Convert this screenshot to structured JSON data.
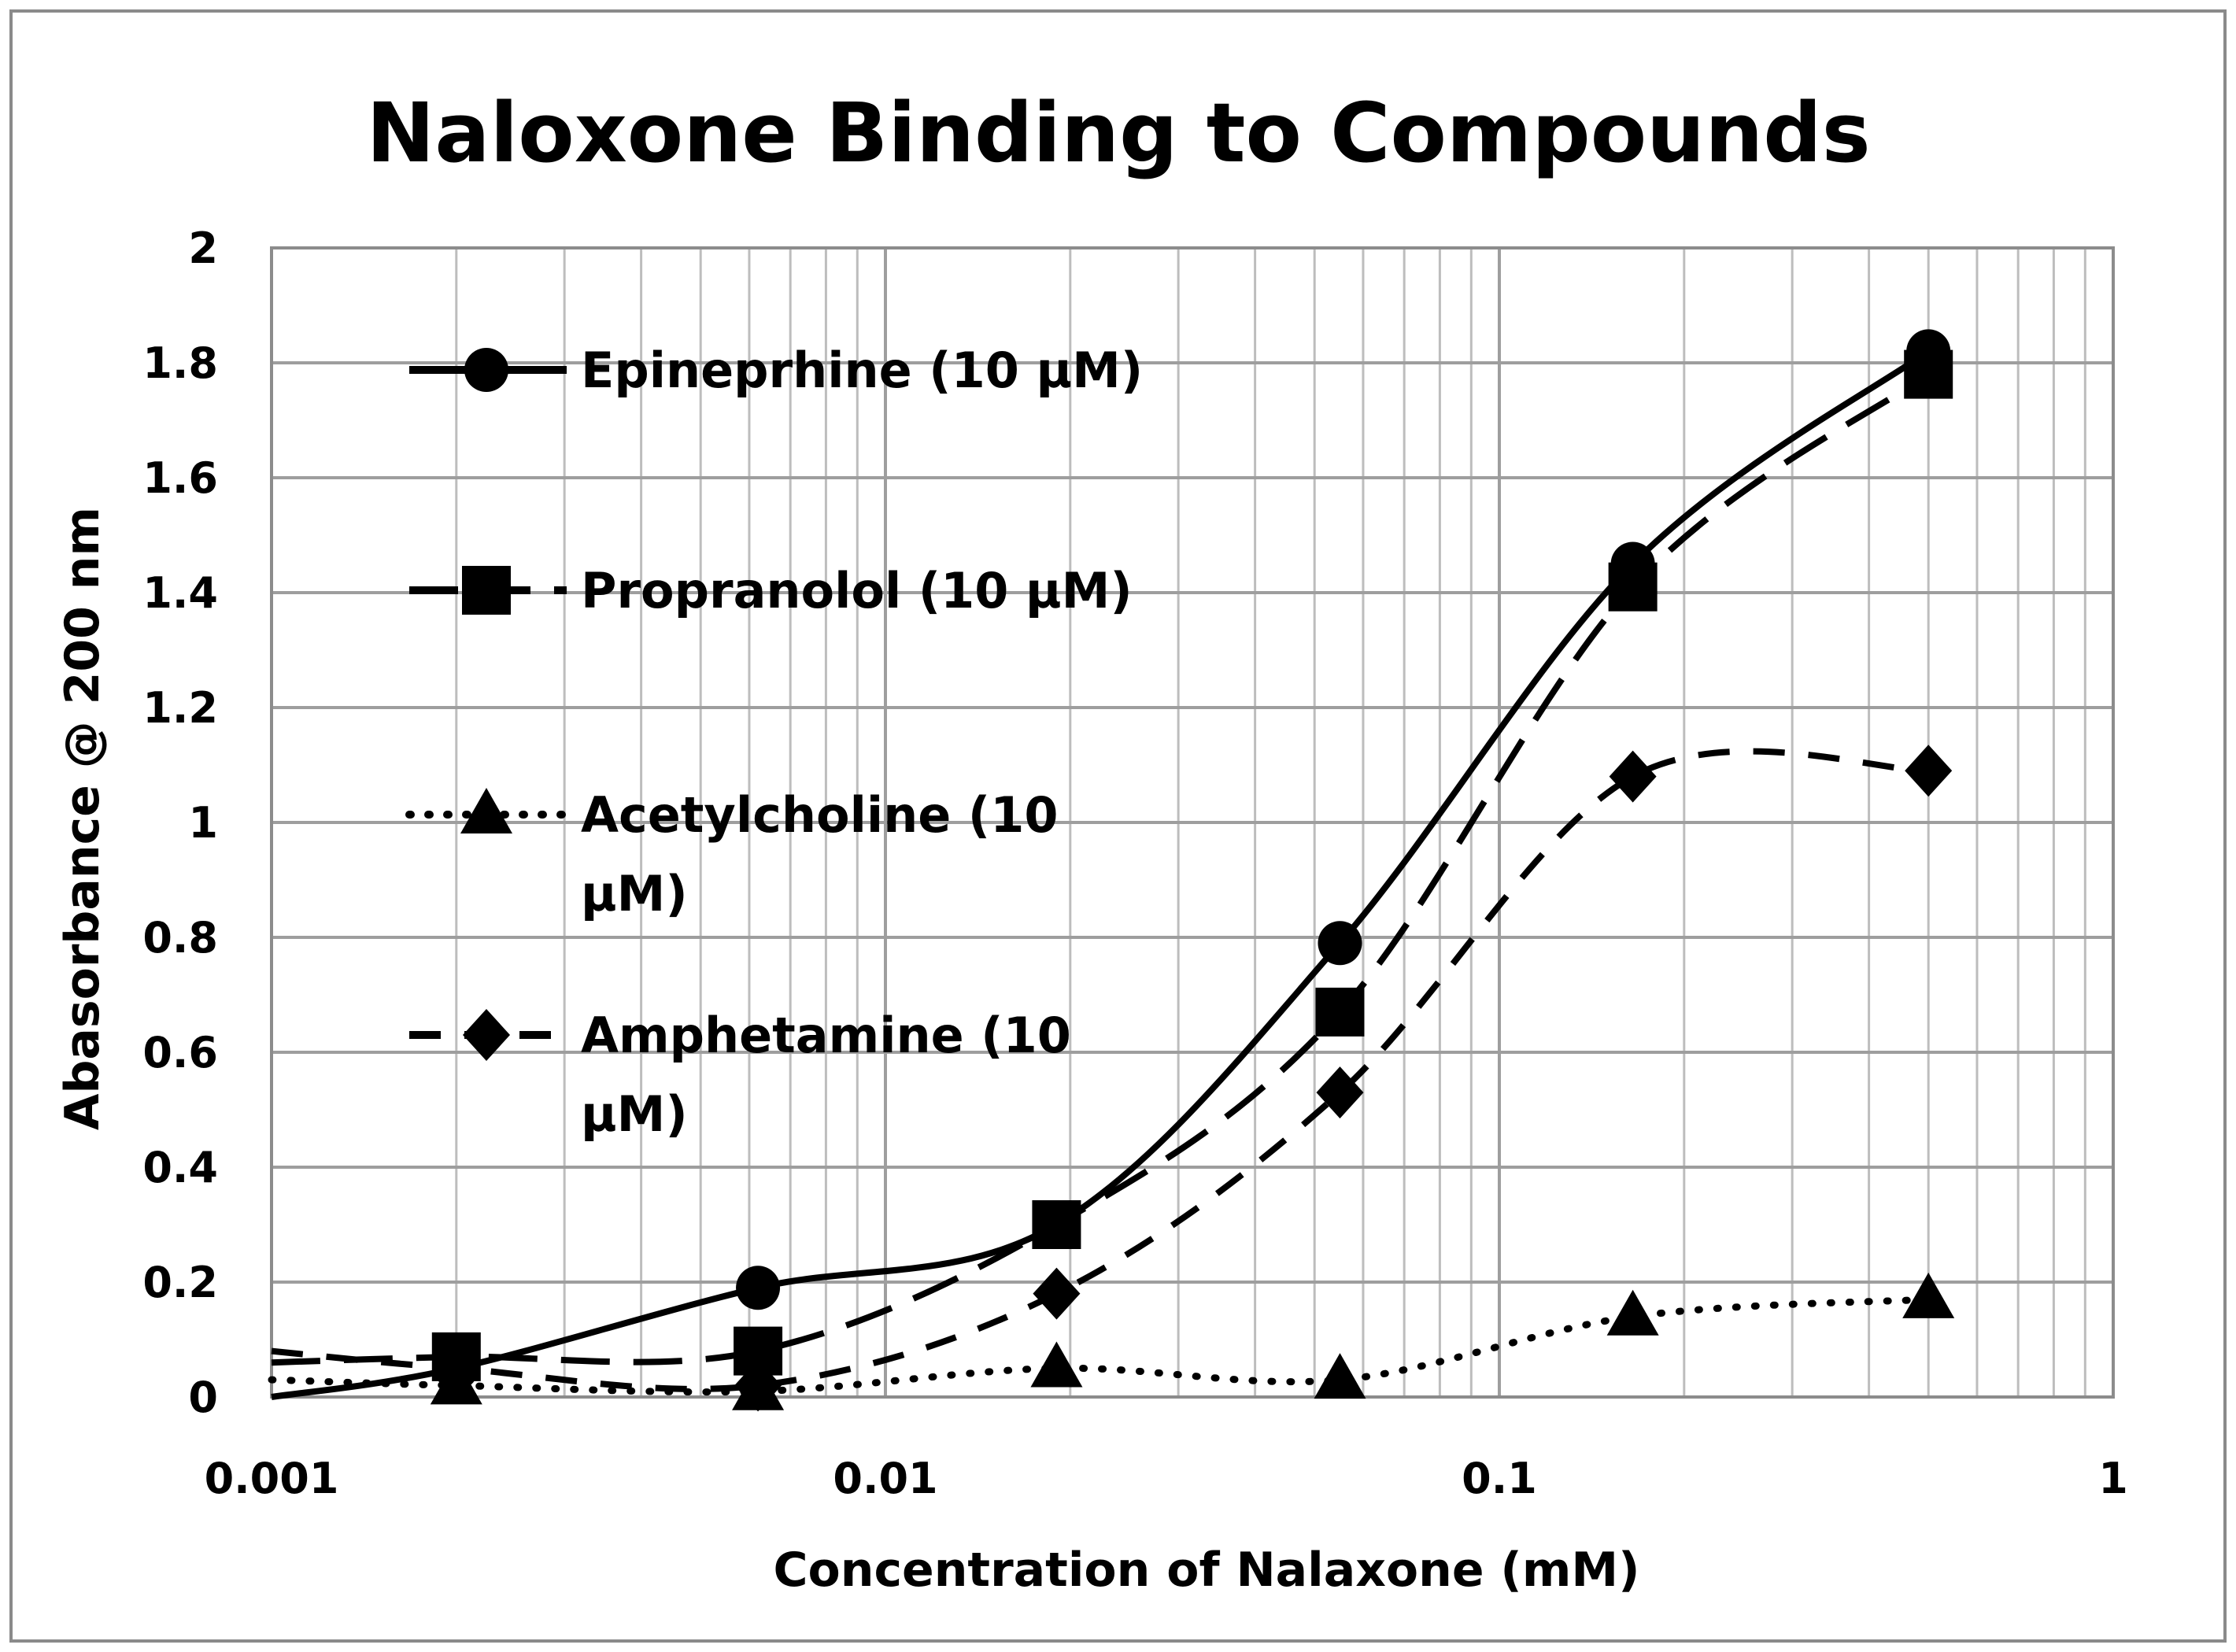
{
  "chart_data": {
    "type": "line",
    "title": "Naloxone Binding to Compounds",
    "xlabel": "Concentration of Nalaxone (mM)",
    "ylabel": "Abasorbance @ 200 nm",
    "x_scale": "log",
    "xlim": [
      0.001,
      1
    ],
    "ylim": [
      0,
      2
    ],
    "x_ticks": [
      0.001,
      0.01,
      0.1,
      1
    ],
    "x_tick_labels": [
      "0.001",
      "0.01",
      "0.1",
      "1"
    ],
    "y_ticks": [
      0,
      0.2,
      0.4,
      0.6,
      0.8,
      1,
      1.2,
      1.4,
      1.6,
      1.8,
      2
    ],
    "y_tick_labels": [
      "0",
      "0.2",
      "0.4",
      "0.6",
      "0.8",
      "1",
      "1.2",
      "1.4",
      "1.6",
      "1.8",
      "2"
    ],
    "grid": true,
    "legend_position": "top-left",
    "series": [
      {
        "name": "Epineprhine (10 µM)",
        "legend_lines": [
          "Epineprhine (10 µM)"
        ],
        "marker": "circle",
        "line_style": "solid",
        "x": [
          0.001,
          0.002,
          0.0062,
          0.019,
          0.055,
          0.165,
          0.5
        ],
        "y": [
          0.0,
          0.05,
          0.19,
          0.3,
          0.79,
          1.45,
          1.82
        ]
      },
      {
        "name": "Propranolol (10 µM)",
        "legend_lines": [
          "Propranolol (10 µM)"
        ],
        "marker": "square",
        "line_style": "long-dash",
        "x": [
          0.001,
          0.002,
          0.0062,
          0.019,
          0.055,
          0.165,
          0.5
        ],
        "y": [
          0.06,
          0.07,
          0.08,
          0.3,
          0.67,
          1.41,
          1.78
        ]
      },
      {
        "name": "Acetylcholine (10 µM)",
        "legend_lines": [
          "Acetylcholine (10",
          "µM)"
        ],
        "marker": "triangle",
        "line_style": "dotted",
        "x": [
          0.001,
          0.002,
          0.0062,
          0.019,
          0.055,
          0.165,
          0.5
        ],
        "y": [
          0.03,
          0.02,
          0.01,
          0.05,
          0.03,
          0.14,
          0.17
        ]
      },
      {
        "name": "Amphetamine (10 µM)",
        "legend_lines": [
          "Amphetamine (10",
          "µM)"
        ],
        "marker": "diamond",
        "line_style": "dash",
        "x": [
          0.001,
          0.002,
          0.0062,
          0.019,
          0.055,
          0.165,
          0.5
        ],
        "y": [
          0.08,
          0.05,
          0.02,
          0.18,
          0.53,
          1.08,
          1.09
        ]
      }
    ]
  }
}
